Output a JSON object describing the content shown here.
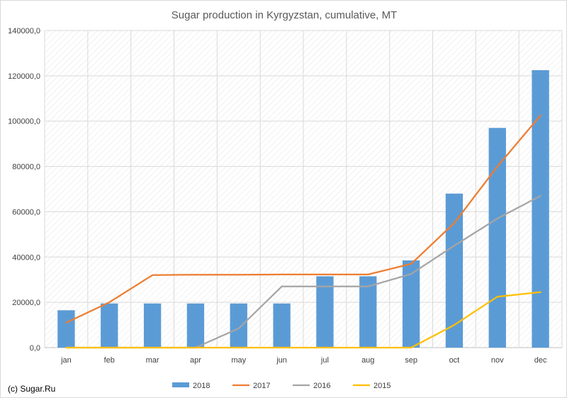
{
  "chart_data": {
    "type": "bar",
    "title": "Sugar production in Kyrgyzstan, cumulative, MT",
    "categories": [
      "jan",
      "feb",
      "mar",
      "apr",
      "may",
      "jun",
      "jul",
      "aug",
      "sep",
      "oct",
      "nov",
      "dec"
    ],
    "ylim": [
      0,
      140000
    ],
    "yticks": [
      "0,0",
      "20000,0",
      "40000,0",
      "60000,0",
      "80000,0",
      "100000,0",
      "120000,0",
      "140000,0"
    ],
    "ytick_values": [
      0,
      20000,
      40000,
      60000,
      80000,
      100000,
      120000,
      140000
    ],
    "grid": true,
    "legend_position": "bottom",
    "series": [
      {
        "name": "2018",
        "kind": "bar",
        "color": "#5b9bd5",
        "values": [
          16500,
          19500,
          19500,
          19500,
          19500,
          19500,
          31500,
          31500,
          38500,
          68000,
          97000,
          122500
        ]
      },
      {
        "name": "2017",
        "kind": "line",
        "color": "#ed7d31",
        "values": [
          11000,
          20000,
          32000,
          32200,
          32200,
          32300,
          32300,
          32300,
          37000,
          55000,
          80000,
          102500
        ]
      },
      {
        "name": "2016",
        "kind": "line",
        "color": "#a5a5a5",
        "values": [
          0,
          0,
          0,
          0,
          8500,
          27000,
          27000,
          27000,
          32500,
          45000,
          57000,
          67000
        ]
      },
      {
        "name": "2015",
        "kind": "line",
        "color": "#ffc000",
        "values": [
          0,
          0,
          0,
          0,
          0,
          0,
          0,
          0,
          0,
          10000,
          22500,
          24500
        ]
      }
    ]
  },
  "credit": "(c) Sugar.Ru"
}
